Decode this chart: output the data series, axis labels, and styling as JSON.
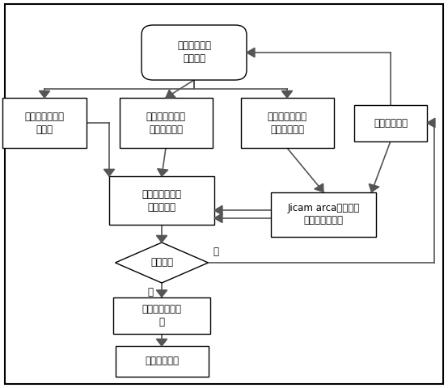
{
  "box1_text": "雷达差分相位\n探测方法",
  "box2_text": "计算机仿真与建\n模研究",
  "box3_text": "非相干散射软件\n雷达验证测试",
  "box4_text": "三亚非相干散射\n雷达验证测试",
  "box5_text": "修改设计方案",
  "box6_text": "仿真、实验结果\n的对比分析",
  "box7_text": "Jicam arca非相干散\n射雷达验证实验",
  "box8_text": "满足要求",
  "box9_text": "研讨改进设计方\n案",
  "box10_text": "完成设计方案",
  "yes_text": "是",
  "no_text": "否",
  "bg_color": "#ffffff",
  "box_facecolor": "#ffffff",
  "box_edgecolor": "#000000",
  "arrow_color": "#555555",
  "font_color": "#000000",
  "font_size": 8.5,
  "line_width": 1.0,
  "fig_w": 5.54,
  "fig_h": 4.8,
  "dpi": 100
}
